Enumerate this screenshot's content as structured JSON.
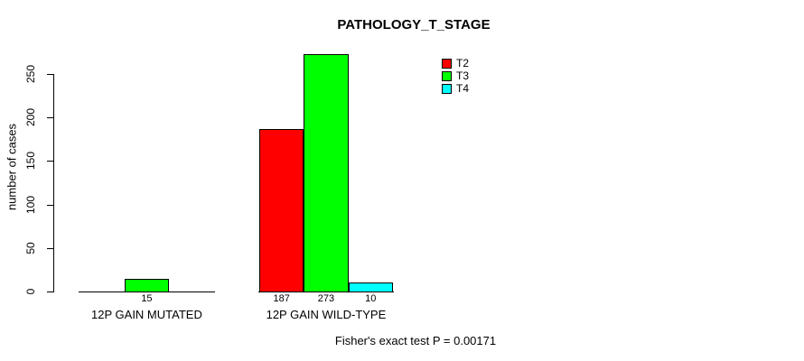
{
  "chart_data": {
    "type": "bar",
    "title": "PATHOLOGY_T_STAGE",
    "ylabel": "number of cases",
    "xlabel": "",
    "categories": [
      "12P GAIN MUTATED",
      "12P GAIN WILD-TYPE"
    ],
    "series": [
      {
        "name": "T2",
        "color": "#ff0000",
        "values": [
          0,
          187
        ]
      },
      {
        "name": "T3",
        "color": "#00ff00",
        "values": [
          15,
          273
        ]
      },
      {
        "name": "T4",
        "color": "#00ffff",
        "values": [
          0,
          10
        ]
      }
    ],
    "yticks": [
      0,
      50,
      100,
      150,
      200,
      250
    ],
    "ylim": [
      0,
      273
    ],
    "grid": false,
    "legend_position": "top-right",
    "value_labels": "below-axis-nonzero-only",
    "footnote": "Fisher's exact test P = 0.00171",
    "axis_color": "#000000",
    "background_color": "#ffffff"
  }
}
